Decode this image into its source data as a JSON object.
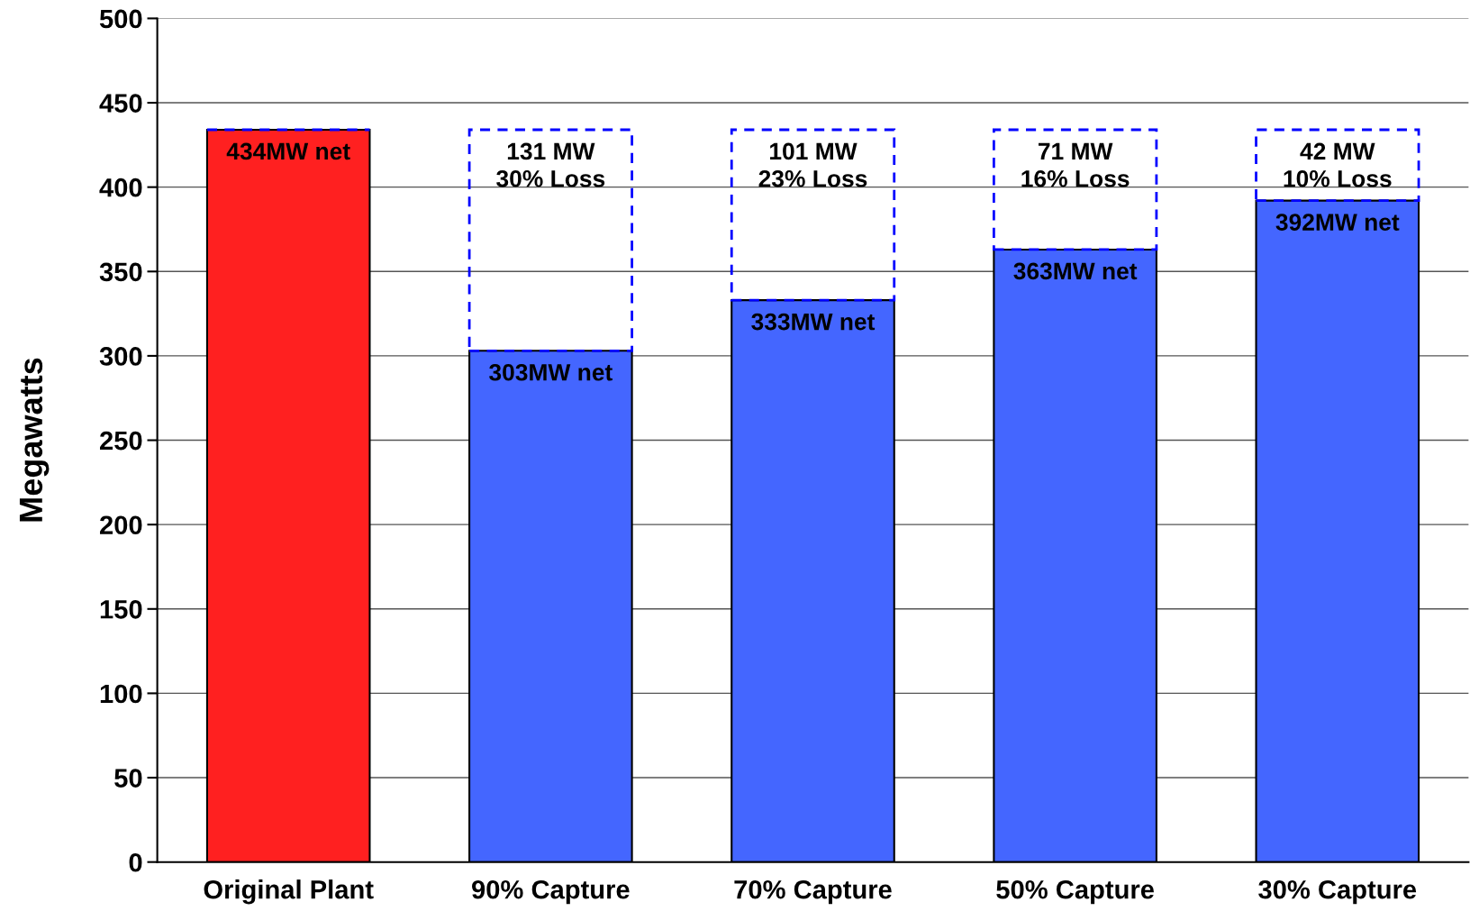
{
  "chart_data": {
    "type": "bar",
    "stacked": true,
    "ylabel": "Megawatts",
    "categories": [
      "Original Plant",
      "90% Capture",
      "70% Capture",
      "50% Capture",
      "30% Capture"
    ],
    "series": [
      {
        "values": [
          434,
          303,
          333,
          363,
          392
        ],
        "colors": [
          "#ff2020",
          "#4466ff",
          "#4466ff",
          "#4466ff",
          "#4466ff"
        ],
        "value_labels": [
          "434MW net",
          "303MW net",
          "333MW net",
          "363MW net",
          "392MW net"
        ]
      },
      {
        "values": [
          null,
          131,
          101,
          71,
          42
        ],
        "color": "#0000ff",
        "line_style": "dashed",
        "value_labels": [
          null,
          "131 MW\n30% Loss",
          "101 MW\n23% Loss",
          "71 MW\n16% Loss",
          "42 MW\n10% Loss"
        ]
      }
    ],
    "ylim": [
      0,
      500
    ],
    "yticks": [
      0,
      50,
      100,
      150,
      200,
      250,
      300,
      350,
      400,
      450,
      500
    ],
    "grid": "y",
    "legend": false
  }
}
